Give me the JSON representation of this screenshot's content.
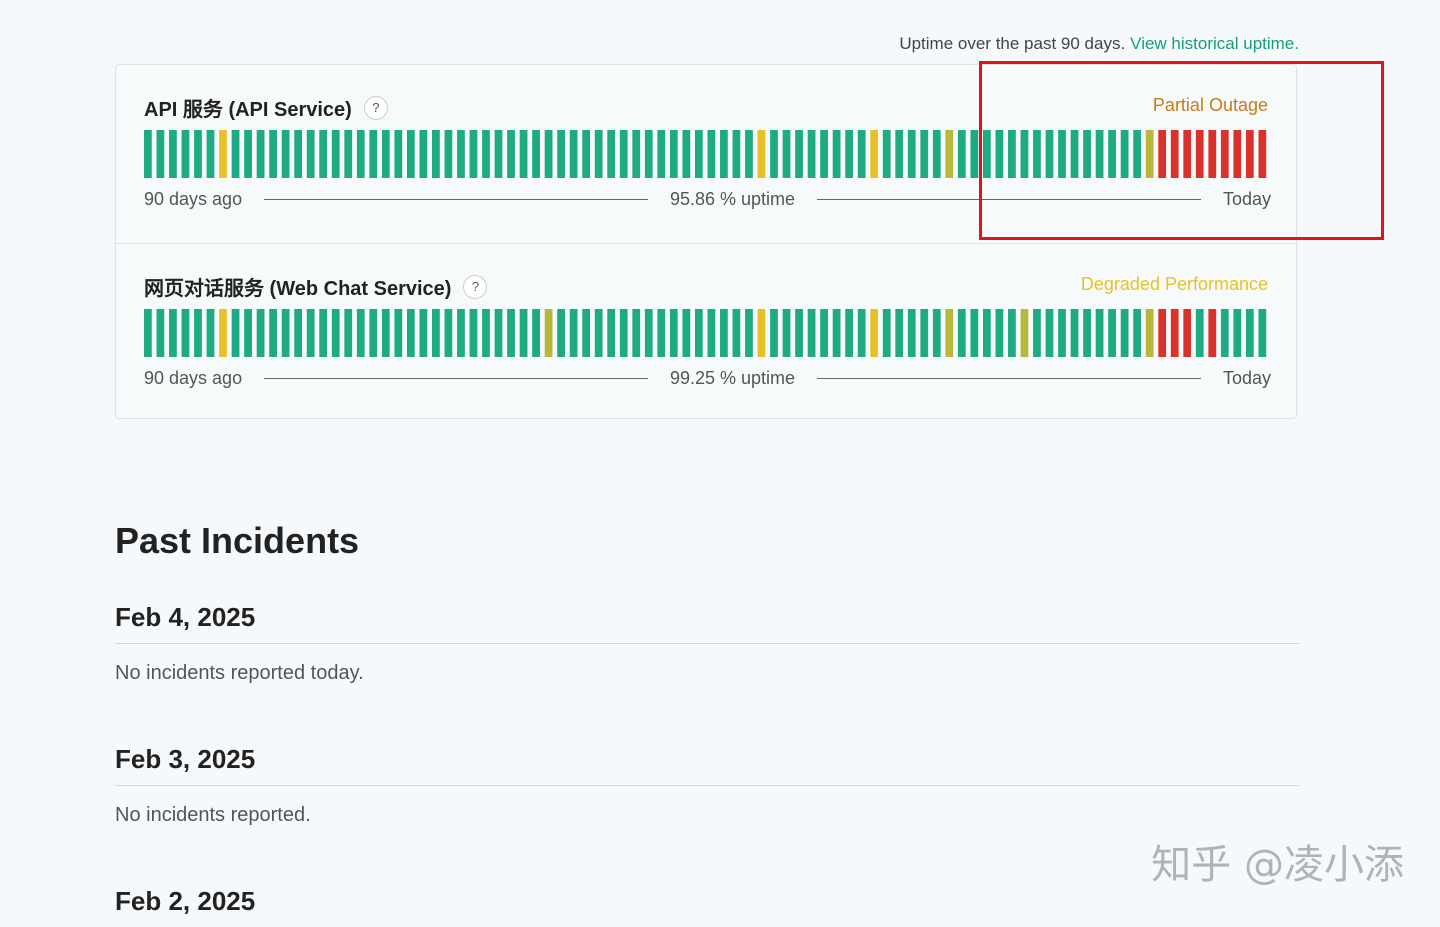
{
  "uptime_note": {
    "text": "Uptime over the past 90 days.",
    "link": "View historical uptime."
  },
  "colors": {
    "green": "#1eaa83",
    "yellow": "#e8c12a",
    "olive": "#b5b83a",
    "red": "#d9312b",
    "partial": "#c77b1b",
    "degraded": "#e8c12a"
  },
  "components": [
    {
      "name": "API 服务 (API Service)",
      "help": "?",
      "status": "Partial Outage",
      "status_color": "#c77b1b",
      "left_label": "90 days ago",
      "uptime": "95.86 % uptime",
      "right_label": "Today",
      "bars": [
        "g",
        "g",
        "g",
        "g",
        "g",
        "g",
        "y",
        "g",
        "g",
        "g",
        "g",
        "g",
        "g",
        "g",
        "g",
        "g",
        "g",
        "g",
        "g",
        "g",
        "g",
        "g",
        "g",
        "g",
        "g",
        "g",
        "g",
        "g",
        "g",
        "g",
        "g",
        "g",
        "g",
        "g",
        "g",
        "g",
        "g",
        "g",
        "g",
        "g",
        "g",
        "g",
        "g",
        "g",
        "g",
        "g",
        "g",
        "g",
        "g",
        "y",
        "g",
        "g",
        "g",
        "g",
        "g",
        "g",
        "g",
        "g",
        "y",
        "g",
        "g",
        "g",
        "g",
        "g",
        "o",
        "g",
        "g",
        "g",
        "g",
        "g",
        "g",
        "g",
        "g",
        "g",
        "g",
        "g",
        "g",
        "g",
        "g",
        "g",
        "o",
        "r",
        "r",
        "r",
        "r",
        "r",
        "r",
        "r",
        "r",
        "r"
      ]
    },
    {
      "name": "网页对话服务 (Web Chat Service)",
      "help": "?",
      "status": "Degraded Performance",
      "status_color": "#e8c12a",
      "left_label": "90 days ago",
      "uptime": "99.25 % uptime",
      "right_label": "Today",
      "bars": [
        "g",
        "g",
        "g",
        "g",
        "g",
        "g",
        "y",
        "g",
        "g",
        "g",
        "g",
        "g",
        "g",
        "g",
        "g",
        "g",
        "g",
        "g",
        "g",
        "g",
        "g",
        "g",
        "g",
        "g",
        "g",
        "g",
        "g",
        "g",
        "g",
        "g",
        "g",
        "g",
        "o",
        "g",
        "g",
        "g",
        "g",
        "g",
        "g",
        "g",
        "g",
        "g",
        "g",
        "g",
        "g",
        "g",
        "g",
        "g",
        "g",
        "y",
        "g",
        "g",
        "g",
        "g",
        "g",
        "g",
        "g",
        "g",
        "y",
        "g",
        "g",
        "g",
        "g",
        "g",
        "o",
        "g",
        "g",
        "g",
        "g",
        "g",
        "o",
        "g",
        "g",
        "g",
        "g",
        "g",
        "g",
        "g",
        "g",
        "g",
        "o",
        "r",
        "r",
        "r",
        "g",
        "r",
        "g",
        "g",
        "g",
        "g"
      ]
    }
  ],
  "past_incidents": {
    "title": "Past Incidents",
    "days": [
      {
        "date": "Feb 4, 2025",
        "message": "No incidents reported today."
      },
      {
        "date": "Feb 3, 2025",
        "message": "No incidents reported."
      },
      {
        "date": "Feb 2, 2025",
        "message": ""
      }
    ]
  },
  "watermark": "知乎 @凌小添"
}
